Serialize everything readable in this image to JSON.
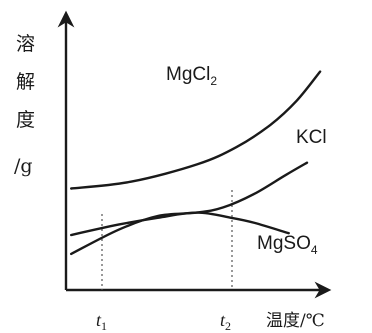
{
  "chart_data": {
    "type": "line",
    "ylabel_chars": [
      "溶",
      "解",
      "度",
      "/g"
    ],
    "xlabel": "温度/℃",
    "ticks": [
      {
        "base": "t",
        "sub": "1"
      },
      {
        "base": "t",
        "sub": "2"
      }
    ],
    "series": [
      {
        "name": "MgCl",
        "sub": "2",
        "points": [
          [
            0.02,
            0.59
          ],
          [
            0.25,
            0.63
          ],
          [
            0.5,
            0.73
          ],
          [
            0.65,
            0.83
          ],
          [
            0.78,
            0.96
          ],
          [
            0.88,
            1.1
          ],
          [
            0.97,
            1.27
          ]
        ]
      },
      {
        "name": "KCl",
        "points": [
          [
            0.02,
            0.21
          ],
          [
            0.2,
            0.35
          ],
          [
            0.35,
            0.43
          ],
          [
            0.5,
            0.45
          ],
          [
            0.6,
            0.48
          ],
          [
            0.72,
            0.56
          ],
          [
            0.84,
            0.67
          ],
          [
            0.92,
            0.74
          ]
        ]
      },
      {
        "name": "MgSO",
        "sub": "4",
        "points": [
          [
            0.02,
            0.32
          ],
          [
            0.2,
            0.38
          ],
          [
            0.35,
            0.42
          ],
          [
            0.5,
            0.45
          ],
          [
            0.63,
            0.42
          ],
          [
            0.72,
            0.39
          ],
          [
            0.85,
            0.33
          ]
        ]
      }
    ]
  }
}
